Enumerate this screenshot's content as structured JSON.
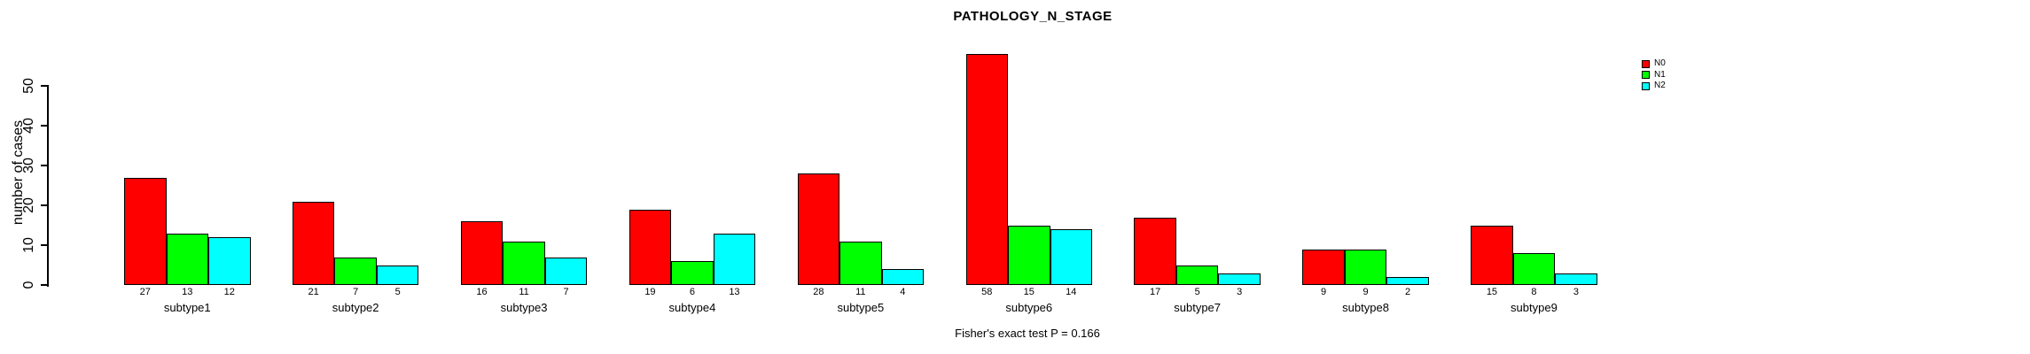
{
  "title": "PATHOLOGY_N_STAGE",
  "footer": "Fisher's exact test P = 0.166",
  "y_axis": {
    "label": "number of cases",
    "ticks": [
      0,
      10,
      20,
      30,
      40,
      50
    ]
  },
  "legend": [
    {
      "label": "N0",
      "color": "#FF0000"
    },
    {
      "label": "N1",
      "color": "#00FF00"
    },
    {
      "label": "N2",
      "color": "#00FFFF"
    }
  ],
  "chart_data": {
    "type": "bar",
    "title": "PATHOLOGY_N_STAGE",
    "xlabel": "",
    "ylabel": "number of cases",
    "ylim": [
      0,
      50
    ],
    "yticks": [
      0,
      10,
      20,
      30,
      40,
      50
    ],
    "grid": false,
    "legend_position": "top-right",
    "bar_value_labels": true,
    "annotation": "Fisher's exact test P = 0.166",
    "categories": [
      "subtype1",
      "subtype2",
      "subtype3",
      "subtype4",
      "subtype5",
      "subtype6",
      "subtype7",
      "subtype8",
      "subtype9"
    ],
    "series": [
      {
        "name": "N0",
        "color": "#FF0000",
        "values": [
          27,
          21,
          16,
          19,
          28,
          58,
          17,
          9,
          15
        ]
      },
      {
        "name": "N1",
        "color": "#00FF00",
        "values": [
          13,
          7,
          11,
          6,
          11,
          15,
          5,
          9,
          8
        ]
      },
      {
        "name": "N2",
        "color": "#00FFFF",
        "values": [
          12,
          5,
          7,
          13,
          4,
          14,
          3,
          2,
          3
        ]
      }
    ]
  }
}
